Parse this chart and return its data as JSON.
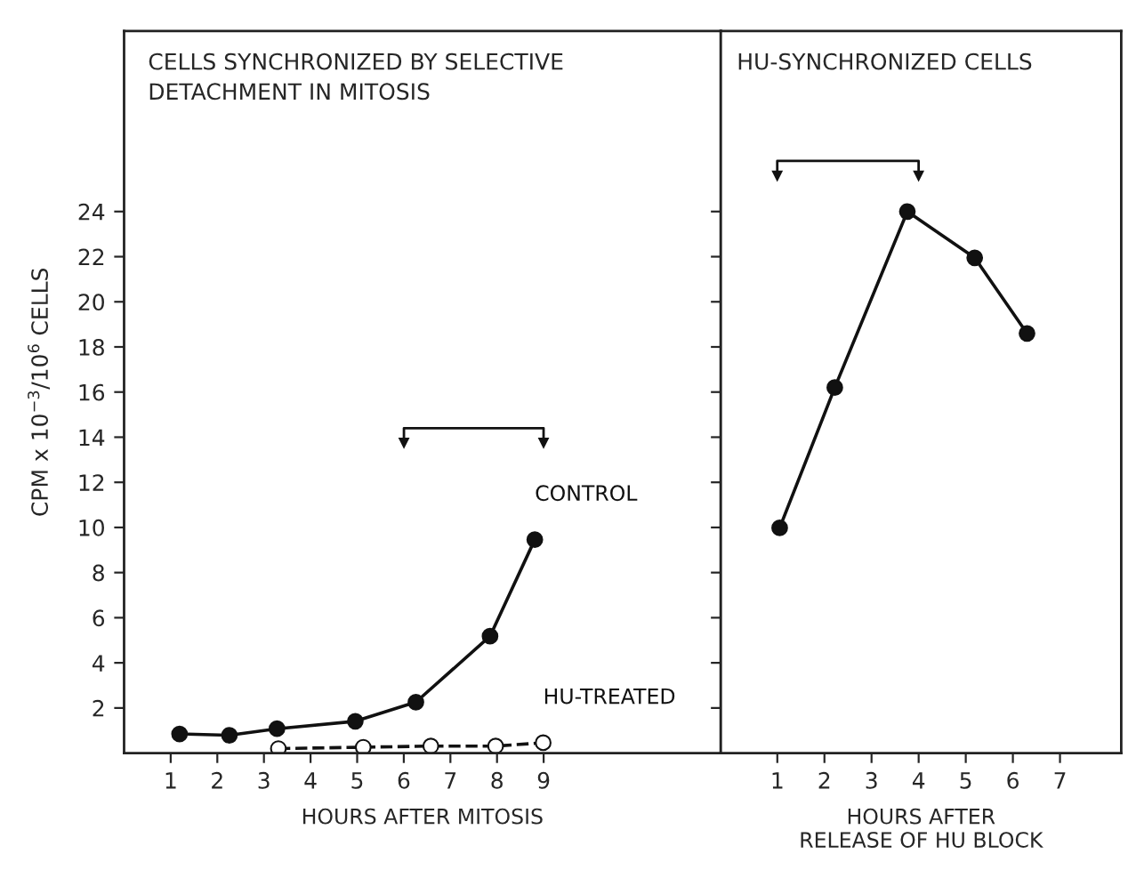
{
  "chart_data": [
    {
      "type": "line",
      "title": "CELLS SYNCHRONIZED BY SELECTIVE\nDETACHMENT IN MITOSIS",
      "xlabel": "HOURS AFTER MITOSIS",
      "ylabel": "CPM x 10$^{−3}$/10$^{6}$ CELLS",
      "xlim": [
        0,
        12.8
      ],
      "xticks": [
        1,
        2,
        3,
        4,
        5,
        6,
        7,
        8,
        9
      ],
      "ylim": [
        0,
        32
      ],
      "yticks": [
        2,
        4,
        6,
        8,
        10,
        12,
        14,
        16,
        18,
        20,
        22,
        24
      ],
      "grid": false,
      "legend": false,
      "marker": "circle",
      "series": [
        {
          "name": "CONTROL",
          "color": "#111111",
          "line_style": "solid",
          "x": [
            1.19,
            2.26,
            3.28,
            4.96,
            6.26,
            7.85,
            8.81
          ],
          "values": [
            0.85,
            0.79,
            1.08,
            1.41,
            2.26,
            5.18,
            9.46
          ]
        },
        {
          "name": "HU-TREATED",
          "color": "#111111",
          "line_style": "dashed",
          "x": [
            3.31,
            5.13,
            6.58,
            7.97,
            8.99
          ],
          "values": [
            0.2,
            0.26,
            0.31,
            0.31,
            0.46
          ]
        }
      ]
    },
    {
      "type": "line",
      "title": "HU-SYNCHRONIZED CELLS",
      "xlabel": "HOURS AFTER\nRELEASE OF HU BLOCK",
      "xlim": [
        -0.2,
        8.3
      ],
      "xticks": [
        1,
        2,
        3,
        4,
        5,
        6,
        7
      ],
      "ylim": [
        0,
        32
      ],
      "yticks": [
        2,
        4,
        6,
        8,
        10,
        12,
        14,
        16,
        18,
        20,
        22,
        24
      ],
      "tick_labels": "x",
      "grid": false,
      "legend": false,
      "marker": "circle",
      "series": [
        {
          "color": "#111111",
          "line_style": "solid",
          "x": [
            1.05,
            2.22,
            3.76,
            5.19,
            6.3
          ],
          "values": [
            9.98,
            16.2,
            24.0,
            21.95,
            18.6
          ]
        }
      ]
    }
  ]
}
